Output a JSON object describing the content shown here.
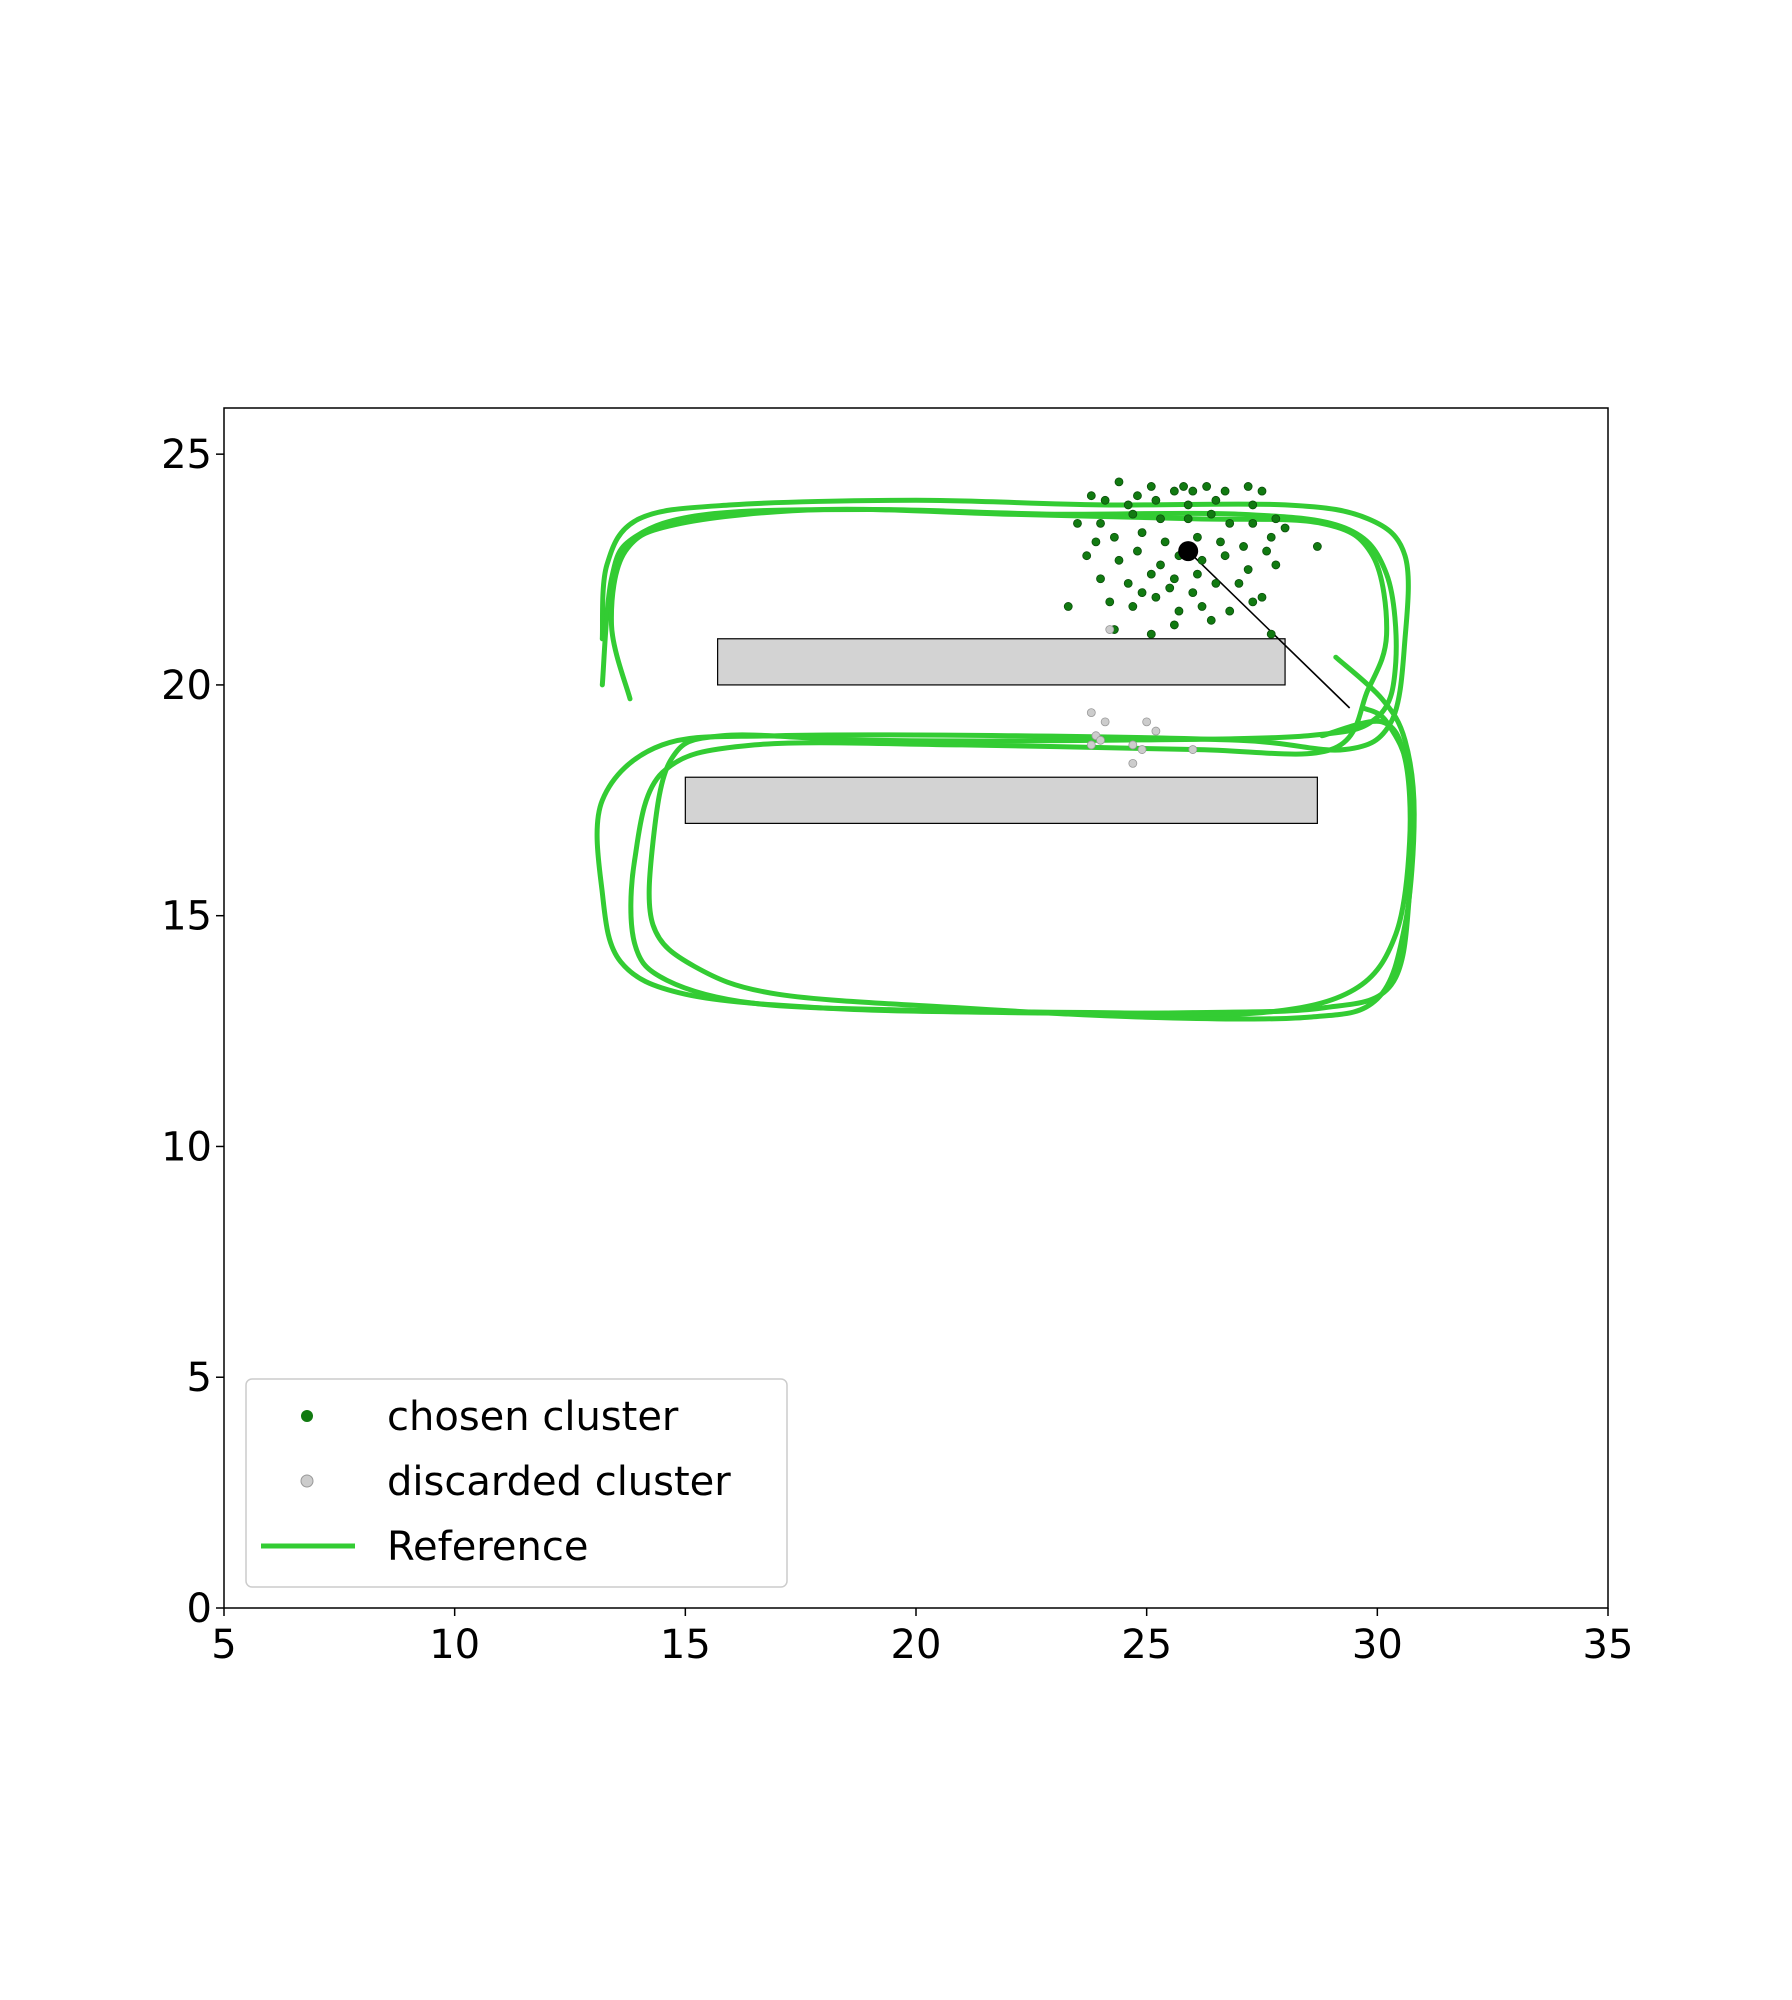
{
  "chart_data": {
    "type": "scatter",
    "xlim": [
      5,
      35
    ],
    "ylim": [
      0,
      26
    ],
    "x_ticks": [
      5,
      10,
      15,
      20,
      25,
      30,
      35
    ],
    "y_ticks": [
      0,
      5,
      10,
      15,
      20,
      25
    ],
    "x_tick_labels": [
      "5",
      "10",
      "15",
      "20",
      "25",
      "30",
      "35"
    ],
    "y_tick_labels": [
      "0",
      "5",
      "10",
      "15",
      "20",
      "25"
    ],
    "grid": false,
    "legend_position": "lower-left",
    "legend": [
      {
        "label": "chosen cluster",
        "marker": "dot",
        "color": "#117a11"
      },
      {
        "label": "discarded cluster",
        "marker": "dot",
        "color": "#cccccc"
      },
      {
        "label": "Reference",
        "marker": "line",
        "color": "#33cc33"
      }
    ],
    "obstacles": [
      {
        "x0": 15.7,
        "y0": 20.0,
        "x1": 28.0,
        "y1": 21.0,
        "color": "#d3d3d3"
      },
      {
        "x0": 15.0,
        "y0": 17.0,
        "x1": 28.7,
        "y1": 18.0,
        "color": "#d3d3d3"
      }
    ],
    "reference_paths": [
      {
        "name": "Reference",
        "color": "#33cc33",
        "points": [
          [
            13.2,
            21
          ],
          [
            13.3,
            22.6
          ],
          [
            14,
            23.6
          ],
          [
            16,
            23.9
          ],
          [
            20,
            24.0
          ],
          [
            24,
            23.9
          ],
          [
            28,
            23.9
          ],
          [
            29.8,
            23.6
          ],
          [
            30.6,
            22.8
          ],
          [
            30.6,
            21
          ],
          [
            30.3,
            19.2
          ],
          [
            29.3,
            18.6
          ],
          [
            27,
            18.8
          ],
          [
            22,
            18.9
          ],
          [
            17,
            18.9
          ],
          [
            14.5,
            18.7
          ],
          [
            13.2,
            17.5
          ],
          [
            13.2,
            15.5
          ],
          [
            13.6,
            14.0
          ],
          [
            15,
            13.3
          ],
          [
            18,
            13.0
          ],
          [
            22,
            12.9
          ],
          [
            26,
            12.9
          ],
          [
            28.8,
            13.0
          ],
          [
            30.3,
            13.5
          ],
          [
            30.7,
            15.5
          ],
          [
            30.7,
            18.0
          ],
          [
            30.2,
            19.2
          ],
          [
            29.7,
            19.5
          ]
        ]
      },
      {
        "name": "Reference",
        "color": "#33cc33",
        "points": [
          [
            13.2,
            20
          ],
          [
            13.4,
            22.3
          ],
          [
            13.9,
            23.2
          ],
          [
            15.5,
            23.7
          ],
          [
            19,
            23.8
          ],
          [
            23,
            23.7
          ],
          [
            27,
            23.7
          ],
          [
            29.3,
            23.4
          ],
          [
            30.2,
            22.4
          ],
          [
            30.4,
            20.5
          ],
          [
            30.0,
            19.3
          ],
          [
            28.5,
            18.9
          ],
          [
            24,
            18.8
          ],
          [
            19,
            18.8
          ],
          [
            15.8,
            18.9
          ],
          [
            14.7,
            18.4
          ],
          [
            14.3,
            16.6
          ],
          [
            14.3,
            14.8
          ],
          [
            15.2,
            13.9
          ],
          [
            17,
            13.3
          ],
          [
            21,
            13.0
          ],
          [
            25,
            12.8
          ],
          [
            28.5,
            12.8
          ],
          [
            30.0,
            13.2
          ],
          [
            30.6,
            14.8
          ],
          [
            30.8,
            17.2
          ],
          [
            30.6,
            18.8
          ],
          [
            30.1,
            19.7
          ],
          [
            29.1,
            20.6
          ]
        ]
      },
      {
        "name": "Reference",
        "color": "#33cc33",
        "points": [
          [
            13.8,
            19.7
          ],
          [
            13.4,
            21.3
          ],
          [
            13.7,
            22.9
          ],
          [
            14.9,
            23.5
          ],
          [
            18,
            23.8
          ],
          [
            22,
            23.7
          ],
          [
            26,
            23.6
          ],
          [
            28.8,
            23.5
          ],
          [
            29.9,
            22.8
          ],
          [
            30.2,
            21.1
          ],
          [
            29.8,
            19.9
          ],
          [
            29.0,
            18.6
          ],
          [
            26,
            18.6
          ],
          [
            21,
            18.7
          ],
          [
            16.5,
            18.7
          ],
          [
            14.5,
            18.1
          ],
          [
            13.9,
            16.2
          ],
          [
            13.9,
            14.4
          ],
          [
            14.6,
            13.6
          ],
          [
            16.5,
            13.1
          ],
          [
            20,
            12.95
          ],
          [
            24,
            12.9
          ],
          [
            27.5,
            12.9
          ],
          [
            29.5,
            13.4
          ],
          [
            30.4,
            14.6
          ],
          [
            30.7,
            16.6
          ],
          [
            30.6,
            18.4
          ],
          [
            30.1,
            19.2
          ],
          [
            28.8,
            18.9
          ]
        ]
      }
    ],
    "series": [
      {
        "name": "chosen cluster",
        "color": "#117a11",
        "points": [
          [
            24.4,
            24.4
          ],
          [
            24.8,
            24.1
          ],
          [
            25.1,
            24.3
          ],
          [
            25.6,
            24.2
          ],
          [
            25.8,
            24.3
          ],
          [
            26,
            24.2
          ],
          [
            26.3,
            24.3
          ],
          [
            26.7,
            24.2
          ],
          [
            27.2,
            24.3
          ],
          [
            27.5,
            24.2
          ],
          [
            23.8,
            24.1
          ],
          [
            24.1,
            24.0
          ],
          [
            24.6,
            23.9
          ],
          [
            25.2,
            24.0
          ],
          [
            25.9,
            23.9
          ],
          [
            26.5,
            24.0
          ],
          [
            27.3,
            23.9
          ],
          [
            27.8,
            23.6
          ],
          [
            28.0,
            23.4
          ],
          [
            23.5,
            23.5
          ],
          [
            24.0,
            23.5
          ],
          [
            24.7,
            23.7
          ],
          [
            25.3,
            23.6
          ],
          [
            25.9,
            23.6
          ],
          [
            26.4,
            23.7
          ],
          [
            26.8,
            23.5
          ],
          [
            27.3,
            23.5
          ],
          [
            27.7,
            23.2
          ],
          [
            23.9,
            23.1
          ],
          [
            24.3,
            23.2
          ],
          [
            24.9,
            23.3
          ],
          [
            25.4,
            23.1
          ],
          [
            26.1,
            23.2
          ],
          [
            26.6,
            23.1
          ],
          [
            27.1,
            23.0
          ],
          [
            27.6,
            22.9
          ],
          [
            23.7,
            22.8
          ],
          [
            24.4,
            22.7
          ],
          [
            24.8,
            22.9
          ],
          [
            25.3,
            22.6
          ],
          [
            25.7,
            22.8
          ],
          [
            26.2,
            22.7
          ],
          [
            26.7,
            22.8
          ],
          [
            27.2,
            22.5
          ],
          [
            27.8,
            22.6
          ],
          [
            24.0,
            22.3
          ],
          [
            24.6,
            22.2
          ],
          [
            25.1,
            22.4
          ],
          [
            25.6,
            22.3
          ],
          [
            26.1,
            22.4
          ],
          [
            26.5,
            22.2
          ],
          [
            27.0,
            22.2
          ],
          [
            27.5,
            21.9
          ],
          [
            24.2,
            21.8
          ],
          [
            24.7,
            21.7
          ],
          [
            25.2,
            21.9
          ],
          [
            25.7,
            21.6
          ],
          [
            26.2,
            21.7
          ],
          [
            26.8,
            21.6
          ],
          [
            27.3,
            21.8
          ],
          [
            23.3,
            21.7
          ],
          [
            24.3,
            21.2
          ],
          [
            25.1,
            21.1
          ],
          [
            25.6,
            21.3
          ],
          [
            26.4,
            21.4
          ],
          [
            27.7,
            21.1
          ],
          [
            28.7,
            23.0
          ],
          [
            24.9,
            22.0
          ],
          [
            25.5,
            22.1
          ],
          [
            26.0,
            22.0
          ]
        ]
      },
      {
        "name": "discarded cluster",
        "color": "#cccccc",
        "points": [
          [
            23.8,
            19.4
          ],
          [
            24.1,
            19.2
          ],
          [
            23.9,
            18.9
          ],
          [
            24.0,
            18.8
          ],
          [
            23.8,
            18.7
          ],
          [
            24.7,
            18.7
          ],
          [
            24.9,
            18.6
          ],
          [
            25.0,
            19.2
          ],
          [
            25.2,
            19.0
          ],
          [
            26.0,
            18.6
          ],
          [
            24.7,
            18.3
          ],
          [
            24.2,
            21.2
          ]
        ]
      }
    ],
    "estimate": {
      "x": 25.9,
      "y": 22.9,
      "color": "#000000"
    },
    "estimate_heading": {
      "x0": 25.9,
      "y0": 22.9,
      "x1": 29.4,
      "y1": 19.5
    }
  }
}
